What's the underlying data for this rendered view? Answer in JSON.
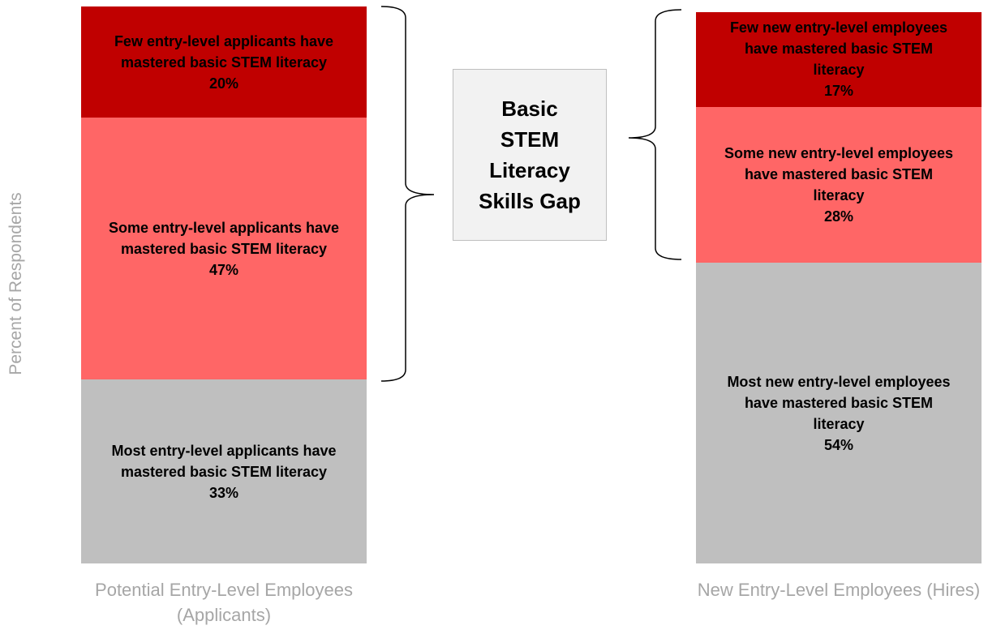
{
  "chart_data": {
    "type": "stacked-bar",
    "y_label": "Percent of Respondents",
    "categories": [
      "Potential Entry-Level Employees (Applicants)",
      "New Entry-Level Employees (Hires)"
    ],
    "ylim": [
      0,
      100
    ],
    "series": [
      {
        "color": "#bfbfbf",
        "values": [
          33,
          54
        ],
        "value_labels": [
          "33%",
          "54%"
        ],
        "labels": [
          "Most entry-level applicants have mastered basic STEM literacy",
          "Most new entry-level employees have mastered basic STEM literacy"
        ]
      },
      {
        "color": "#ff6666",
        "values": [
          47,
          28
        ],
        "value_labels": [
          "47%",
          "28%"
        ],
        "labels": [
          "Some entry-level applicants have mastered basic STEM literacy",
          "Some new entry-level employees have mastered basic STEM literacy"
        ]
      },
      {
        "color": "#c00000",
        "values": [
          20,
          17
        ],
        "value_labels": [
          "20%",
          "17%"
        ],
        "labels": [
          "Few entry-level applicants have mastered basic STEM literacy",
          "Few new entry-level employees have mastered basic STEM literacy"
        ]
      }
    ],
    "annotation": "Basic STEM Literacy Skills Gap"
  }
}
